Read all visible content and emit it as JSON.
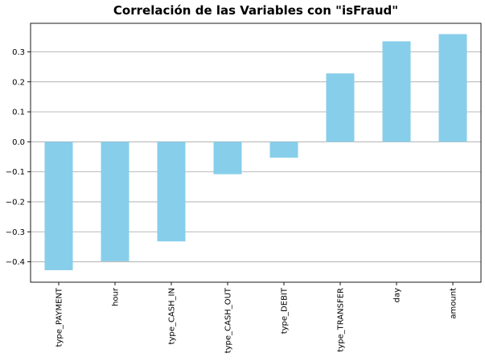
{
  "chart_data": {
    "type": "bar",
    "title": "Correlación de las Variables con \"isFraud\"",
    "xlabel": "",
    "ylabel": "",
    "categories": [
      "type_PAYMENT",
      "hour",
      "type_CASH_IN",
      "type_CASH_OUT",
      "type_DEBIT",
      "type_TRANSFER",
      "day",
      "amount"
    ],
    "values": [
      -0.428,
      -0.398,
      -0.332,
      -0.108,
      -0.053,
      0.228,
      0.335,
      0.359
    ],
    "ylim": [
      -0.468,
      0.395
    ],
    "yticks": [
      -0.4,
      -0.3,
      -0.2,
      -0.1,
      0.0,
      0.1,
      0.2,
      0.3
    ],
    "ytick_labels": [
      "−0.4",
      "−0.3",
      "−0.2",
      "−0.1",
      "0.0",
      "0.1",
      "0.2",
      "0.3"
    ],
    "grid": {
      "y": true,
      "x": false
    },
    "legend": "none",
    "colors": {
      "bar": "#87CEEB",
      "grid": "#b0b0b0",
      "axis": "#000000",
      "background": "#ffffff"
    }
  }
}
